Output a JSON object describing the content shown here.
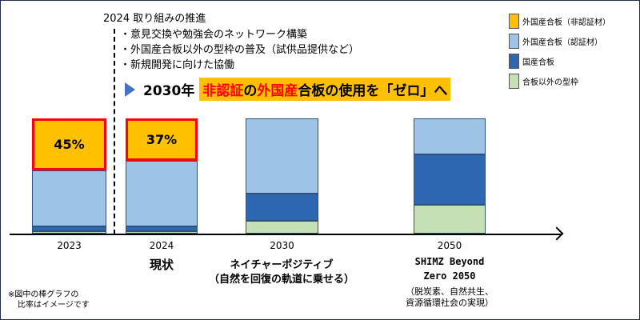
{
  "header": "2024 取り組みの推進",
  "bullets": [
    "・意見交換や勉強会のネットワーク構築",
    "・外国産合板以外の型枠の普及（試供品提供など）",
    "・新規開発に向けた協働"
  ],
  "goal": {
    "year": "2030年",
    "part1": "非認証",
    "part2": "の",
    "part3": "外国産",
    "part4": "合板の使用を「ゼロ」へ"
  },
  "legend": [
    {
      "label": "外国産合板（非認証材）",
      "color": "#ffc000"
    },
    {
      "label": "外国産合板（認証材）",
      "color": "#9dc3e6"
    },
    {
      "label": "国産合板",
      "color": "#2e67b1"
    },
    {
      "label": "合板以外の型枠",
      "color": "#c5e0b4"
    }
  ],
  "chart_data": {
    "type": "bar",
    "stacked": true,
    "categories": [
      "2023",
      "2024",
      "2030",
      "2050"
    ],
    "series": [
      {
        "name": "合板以外の型枠",
        "values": [
          2,
          2,
          11,
          25
        ]
      },
      {
        "name": "国産合板",
        "values": [
          4,
          4,
          24,
          44
        ]
      },
      {
        "name": "外国産合板（認証材）",
        "values": [
          49,
          57,
          65,
          31
        ]
      },
      {
        "name": "外国産合板（非認証材）",
        "values": [
          45,
          37,
          0,
          0
        ]
      }
    ],
    "data_labels": [
      "45%",
      "37%",
      "",
      ""
    ]
  },
  "sublabels": {
    "2024": "現状",
    "2030a": "ネイチャーポジティブ",
    "2030b": "（自然を回復の軌道に乗せる）",
    "2050a": "SHIMZ Beyond",
    "2050b": "Zero 2050",
    "2050c": "（脱炭素、自然共生、",
    "2050d": "資源循環社会の実現）"
  },
  "note": [
    "※図中の棒グラフの",
    "比率はイメージです"
  ]
}
